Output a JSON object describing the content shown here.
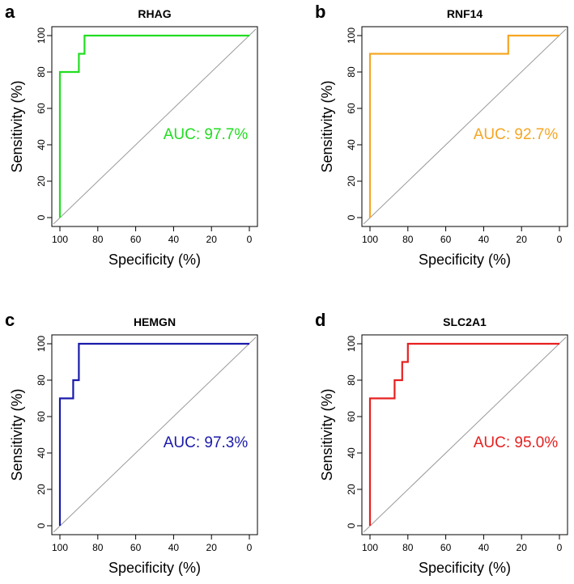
{
  "chart_data": [
    {
      "type": "line",
      "panel_letter": "a",
      "title": "RHAG",
      "xlabel": "Specificity (%)",
      "ylabel": "Sensitivity (%)",
      "xlim": [
        100,
        0
      ],
      "ylim": [
        0,
        100
      ],
      "xticks": [
        "100",
        "80",
        "60",
        "40",
        "20",
        "0"
      ],
      "yticks": [
        "0",
        "20",
        "40",
        "60",
        "80",
        "100"
      ],
      "color": "#22dd22",
      "auc_label": "AUC: 97.7%",
      "roc": {
        "specificity": [
          100,
          100,
          90,
          90,
          87,
          87,
          0
        ],
        "sensitivity": [
          0,
          80,
          80,
          90,
          90,
          100,
          100
        ]
      }
    },
    {
      "type": "line",
      "panel_letter": "b",
      "title": "RNF14",
      "xlabel": "Specificity (%)",
      "ylabel": "Sensitivity (%)",
      "xlim": [
        100,
        0
      ],
      "ylim": [
        0,
        100
      ],
      "xticks": [
        "100",
        "80",
        "60",
        "40",
        "20",
        "0"
      ],
      "yticks": [
        "0",
        "20",
        "40",
        "60",
        "80",
        "100"
      ],
      "color": "#f5a623",
      "auc_label": "AUC: 92.7%",
      "roc": {
        "specificity": [
          100,
          100,
          27,
          27,
          0
        ],
        "sensitivity": [
          0,
          90,
          90,
          100,
          100
        ]
      }
    },
    {
      "type": "line",
      "panel_letter": "c",
      "title": "HEMGN",
      "xlabel": "Specificity (%)",
      "ylabel": "Sensitivity (%)",
      "xlim": [
        100,
        0
      ],
      "ylim": [
        0,
        100
      ],
      "xticks": [
        "100",
        "80",
        "60",
        "40",
        "20",
        "0"
      ],
      "yticks": [
        "0",
        "20",
        "40",
        "60",
        "80",
        "100"
      ],
      "color": "#1a1aaa",
      "auc_label": "AUC: 97.3%",
      "roc": {
        "specificity": [
          100,
          100,
          93,
          93,
          90,
          90,
          0
        ],
        "sensitivity": [
          0,
          70,
          70,
          80,
          80,
          100,
          100
        ]
      }
    },
    {
      "type": "line",
      "panel_letter": "d",
      "title": "SLC2A1",
      "xlabel": "Specificity (%)",
      "ylabel": "Sensitivity (%)",
      "xlim": [
        100,
        0
      ],
      "ylim": [
        0,
        100
      ],
      "xticks": [
        "100",
        "80",
        "60",
        "40",
        "20",
        "0"
      ],
      "yticks": [
        "0",
        "20",
        "40",
        "60",
        "80",
        "100"
      ],
      "color": "#e62020",
      "auc_label": "AUC: 95.0%",
      "roc": {
        "specificity": [
          100,
          100,
          87,
          87,
          83,
          83,
          80,
          80,
          0
        ],
        "sensitivity": [
          0,
          70,
          70,
          80,
          80,
          90,
          90,
          100,
          100
        ]
      }
    }
  ]
}
